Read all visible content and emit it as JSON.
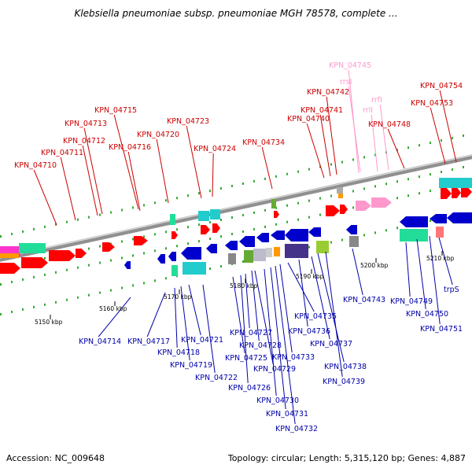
{
  "title": "Klebsiella pneumoniae subsp. pneumoniae MGH 78578, complete ...",
  "footer": {
    "accession": "Accession: NC_009648",
    "summary": "Topology: circular; Length: 5,315,120 bp; Genes: 4,887"
  },
  "colors": {
    "forward": "#ff0000",
    "reverse": "#0000cc",
    "rna": "#ff99cc",
    "backbone": "#999999"
  },
  "chart_data": {
    "type": "genome-map",
    "kbp_ticks": [
      "5150 kbp",
      "5160 kbp",
      "5170 kbp",
      "5180 kbp",
      "5190 kbp",
      "5200 kbp",
      "5210 kbp"
    ],
    "top_labels": [
      {
        "text": "KPN_04710",
        "color": "#cc0000"
      },
      {
        "text": "KPN_04711",
        "color": "#cc0000"
      },
      {
        "text": "KPN_04712",
        "color": "#cc0000"
      },
      {
        "text": "KPN_04713",
        "color": "#cc0000"
      },
      {
        "text": "KPN_04715",
        "color": "#cc0000"
      },
      {
        "text": "KPN_04716",
        "color": "#cc0000"
      },
      {
        "text": "KPN_04720",
        "color": "#cc0000"
      },
      {
        "text": "KPN_04723",
        "color": "#cc0000"
      },
      {
        "text": "KPN_04724",
        "color": "#cc0000"
      },
      {
        "text": "KPN_04734",
        "color": "#cc0000"
      },
      {
        "text": "KPN_04740",
        "color": "#cc0000"
      },
      {
        "text": "KPN_04741",
        "color": "#cc0000"
      },
      {
        "text": "KPN_04742",
        "color": "#cc0000"
      },
      {
        "text": "KPN_04745",
        "color": "#ff99cc"
      },
      {
        "text": "rrsI",
        "color": "#ff99cc"
      },
      {
        "text": "rrfI",
        "color": "#ff99cc"
      },
      {
        "text": "rrlI",
        "color": "#ff99cc"
      },
      {
        "text": "KPN_04748",
        "color": "#cc0000"
      },
      {
        "text": "KPN_04753",
        "color": "#cc0000"
      },
      {
        "text": "KPN_04754",
        "color": "#cc0000"
      }
    ],
    "bottom_labels": [
      {
        "text": "KPN_04714"
      },
      {
        "text": "KPN_04717"
      },
      {
        "text": "KPN_04718"
      },
      {
        "text": "KPN_04719"
      },
      {
        "text": "KPN_04721"
      },
      {
        "text": "KPN_04722"
      },
      {
        "text": "KPN_04725"
      },
      {
        "text": "KPN_04726"
      },
      {
        "text": "KPN_04727"
      },
      {
        "text": "KPN_04728"
      },
      {
        "text": "KPN_04729"
      },
      {
        "text": "KPN_04730"
      },
      {
        "text": "KPN_04731"
      },
      {
        "text": "KPN_04732"
      },
      {
        "text": "KPN_04733"
      },
      {
        "text": "KPN_04735"
      },
      {
        "text": "KPN_04736"
      },
      {
        "text": "KPN_04737"
      },
      {
        "text": "KPN_04738"
      },
      {
        "text": "KPN_04739"
      },
      {
        "text": "KPN_04743"
      },
      {
        "text": "KPN_04749"
      },
      {
        "text": "KPN_04750"
      },
      {
        "text": "KPN_04751"
      },
      {
        "text": "trpS"
      }
    ]
  }
}
